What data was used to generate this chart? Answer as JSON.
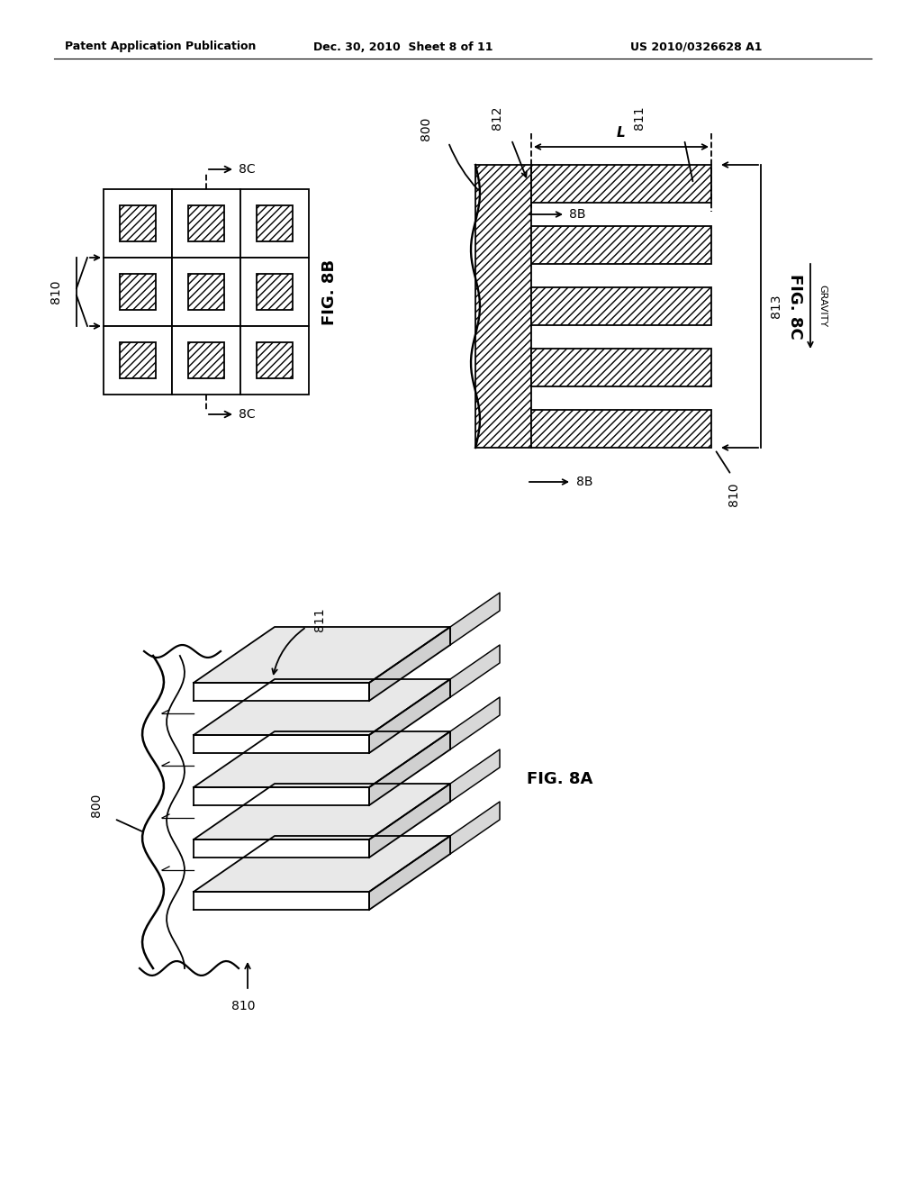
{
  "header_left": "Patent Application Publication",
  "header_mid": "Dec. 30, 2010  Sheet 8 of 11",
  "header_right": "US 2010/0326628 A1",
  "fig8b_label": "FIG. 8B",
  "fig8c_label": "FIG. 8C",
  "fig8a_label": "FIG. 8A",
  "bg_color": "#ffffff",
  "line_color": "#000000"
}
